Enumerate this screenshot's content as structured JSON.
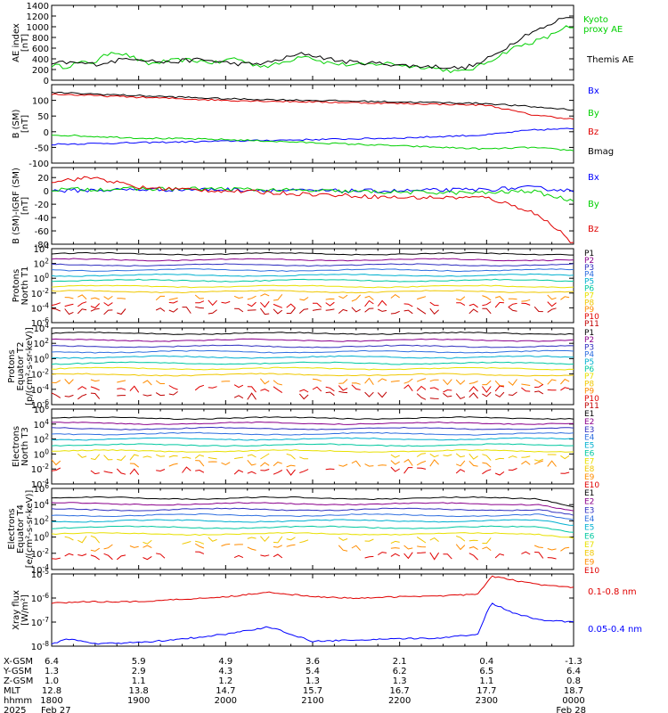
{
  "colors": {
    "black": "#000000",
    "red": "#e00000",
    "green": "#00d000",
    "blue": "#0000ff",
    "P1": "#000000",
    "P2": "#8b008b",
    "P3": "#3030c0",
    "P4": "#2f6fe0",
    "P5": "#00b0d0",
    "P6": "#00c8a0",
    "P7": "#e8e000",
    "P8": "#f0c800",
    "P9": "#ff8c00",
    "P10": "#e00000",
    "P11": "#c00000"
  },
  "chart_data": [
    {
      "type": "line",
      "ylabel": "AE index\n[nT]",
      "ylim": [
        0,
        1400
      ],
      "yticks": [
        "1400",
        "1200",
        "1000",
        "800",
        "600",
        "400",
        "200",
        "0"
      ],
      "ytick_values": [
        1400,
        1200,
        1000,
        800,
        600,
        400,
        200,
        0
      ],
      "series": [
        {
          "name": "Kyoto\nproxy AE",
          "color": "#00d000",
          "x": [
            0,
            0.15,
            0.3,
            0.5,
            0.7,
            0.9,
            1.1,
            1.3,
            1.5,
            1.7,
            1.9,
            2.1,
            2.3,
            2.5,
            2.7,
            2.9,
            3.1,
            3.3,
            3.5,
            3.7,
            3.9,
            4.1,
            4.3,
            4.5,
            4.7,
            4.9,
            5.1,
            5.3,
            5.5,
            5.7,
            5.9,
            6.0
          ],
          "y": [
            280,
            250,
            320,
            340,
            550,
            450,
            300,
            350,
            380,
            360,
            320,
            420,
            300,
            260,
            350,
            480,
            350,
            300,
            280,
            300,
            320,
            260,
            250,
            200,
            150,
            250,
            420,
            600,
            700,
            800,
            1000,
            950
          ]
        },
        {
          "name": "Themis AE",
          "color": "#000000",
          "x": [
            0,
            0.15,
            0.3,
            0.5,
            0.7,
            0.9,
            1.1,
            1.3,
            1.5,
            1.7,
            1.9,
            2.1,
            2.3,
            2.5,
            2.7,
            2.9,
            3.1,
            3.3,
            3.5,
            3.7,
            3.9,
            4.1,
            4.3,
            4.5,
            4.7,
            4.9,
            5.1,
            5.3,
            5.5,
            5.7,
            5.9,
            6.0
          ],
          "y": [
            300,
            330,
            320,
            300,
            350,
            420,
            380,
            330,
            360,
            390,
            350,
            310,
            300,
            330,
            420,
            500,
            430,
            360,
            330,
            320,
            300,
            270,
            260,
            250,
            220,
            300,
            480,
            700,
            900,
            1000,
            1200,
            1150
          ]
        }
      ]
    },
    {
      "type": "line",
      "ylabel": "B (SM)\n[nT]",
      "ylim": [
        -100,
        150
      ],
      "yticks": [
        "100",
        "50",
        "0",
        "-50",
        "-100"
      ],
      "ytick_values": [
        100,
        50,
        0,
        -50,
        -100
      ],
      "series": [
        {
          "name": "Bx",
          "color": "#0000ff",
          "x": [
            0,
            1,
            2,
            3,
            4,
            5,
            5.5,
            6
          ],
          "y": [
            -40,
            -35,
            -30,
            -25,
            -20,
            -10,
            5,
            10
          ]
        },
        {
          "name": "By",
          "color": "#00d000",
          "x": [
            0,
            1,
            2,
            3,
            4,
            5,
            5.5,
            6
          ],
          "y": [
            -10,
            -20,
            -25,
            -35,
            -45,
            -55,
            -50,
            -60
          ]
        },
        {
          "name": "Bz",
          "color": "#e00000",
          "x": [
            0,
            1,
            2,
            3,
            4,
            5,
            5.5,
            6
          ],
          "y": [
            120,
            110,
            100,
            95,
            90,
            85,
            55,
            40
          ]
        },
        {
          "name": "Bmag",
          "color": "#000000",
          "x": [
            0,
            1,
            2,
            3,
            4,
            5,
            5.5,
            6
          ],
          "y": [
            125,
            115,
            105,
            100,
            95,
            90,
            80,
            70
          ]
        }
      ]
    },
    {
      "type": "line",
      "ylabel": "B (SM)-IGRF (SM)\n[nT]",
      "ylim": [
        -80,
        35
      ],
      "yticks": [
        "20",
        "0",
        "-20",
        "-40",
        "-60",
        "-80"
      ],
      "ytick_values": [
        20,
        0,
        -20,
        -40,
        -60,
        -80
      ],
      "series": [
        {
          "name": "Bx",
          "color": "#0000ff",
          "x": [
            0,
            1,
            2,
            3,
            4,
            5,
            5.5,
            6
          ],
          "y": [
            0,
            2,
            2,
            0,
            0,
            2,
            5,
            0
          ]
        },
        {
          "name": "By",
          "color": "#00d000",
          "x": [
            0,
            1,
            2,
            3,
            4,
            5,
            5.5,
            6
          ],
          "y": [
            2,
            3,
            3,
            0,
            -2,
            -3,
            0,
            -15
          ]
        },
        {
          "name": "Bz",
          "color": "#e00000",
          "x": [
            0,
            0.5,
            1,
            2,
            3,
            4,
            5,
            5.5,
            5.8,
            6
          ],
          "y": [
            15,
            20,
            5,
            0,
            -5,
            -10,
            -10,
            -30,
            -55,
            -80
          ]
        }
      ]
    },
    {
      "type": "line",
      "ylabel": "Protons\nNorth T1",
      "ylog": true,
      "ylim": [
        -6,
        4
      ],
      "yticks": [
        "10^4",
        "10^2",
        "10^0",
        "10^-2",
        "10^-4",
        "10^-6"
      ],
      "ytick_values": [
        4,
        2,
        0,
        -2,
        -4,
        -6
      ],
      "series_names": [
        "P1",
        "P2",
        "P3",
        "P4",
        "P5",
        "P6",
        "P7",
        "P8",
        "P9",
        "P10",
        "P11"
      ],
      "series_logs": [
        3.3,
        2.5,
        1.8,
        1.1,
        0.4,
        -0.3,
        -1.1,
        -1.8,
        -2.6,
        -3.5,
        -4.4
      ]
    },
    {
      "type": "line",
      "ylabel": "Protons\nEquator T2\n[p/(cm^2-s-sr-keV)]",
      "ylog": true,
      "ylim": [
        -6,
        4
      ],
      "yticks": [
        "10^4",
        "10^2",
        "10^0",
        "10^-2",
        "10^-4",
        "10^-6"
      ],
      "ytick_values": [
        4,
        2,
        0,
        -2,
        -4,
        -6
      ],
      "series_names": [
        "P1",
        "P2",
        "P3",
        "P4",
        "P5",
        "P6",
        "P7",
        "P8",
        "P9",
        "P10",
        "P11"
      ],
      "series_logs": [
        3.3,
        2.4,
        1.6,
        0.9,
        0.2,
        -0.6,
        -1.3,
        -2.1,
        -3.0,
        -3.9,
        -4.8
      ]
    },
    {
      "type": "line",
      "ylabel": "Electrons\nNorth T3",
      "ylog": true,
      "ylim": [
        -4,
        6
      ],
      "yticks": [
        "10^6",
        "10^4",
        "10^2",
        "10^0",
        "10^-2",
        "10^-4"
      ],
      "ytick_values": [
        6,
        4,
        2,
        0,
        -2,
        -4
      ],
      "series_names": [
        "E1",
        "E2",
        "E3",
        "E4",
        "E5",
        "E6",
        "E7",
        "E8",
        "E9",
        "E10"
      ],
      "series_logs": [
        4.8,
        4.1,
        3.4,
        2.7,
        2.0,
        1.2,
        0.4,
        -0.4,
        -1.3,
        -2.3
      ]
    },
    {
      "type": "line",
      "ylabel": "Electrons\nEquator T4\n[e/(cm^2-s-sr-keV)]",
      "ylog": true,
      "ylim": [
        -4,
        6
      ],
      "yticks": [
        "10^6",
        "10^4",
        "10^2",
        "10^0",
        "10^-2",
        "10^-4"
      ],
      "ytick_values": [
        6,
        4,
        2,
        0,
        -2,
        -4
      ],
      "series_names": [
        "E1",
        "E2",
        "E3",
        "E4",
        "E5",
        "E6",
        "E7",
        "E8",
        "E9",
        "E10"
      ],
      "series_logs": [
        4.8,
        4.1,
        3.4,
        2.7,
        2.0,
        1.2,
        0.4,
        -0.4,
        -1.3,
        -2.3
      ]
    },
    {
      "type": "line",
      "ylabel": "Xray flux\n[W/m^2]",
      "ylog": true,
      "ylim": [
        -8,
        -5
      ],
      "yticks": [
        "10^-5",
        "10^-6",
        "10^-7",
        "10^-8"
      ],
      "ytick_values": [
        -5,
        -6,
        -7,
        -8
      ],
      "series": [
        {
          "name": "0.1-0.8 nm",
          "color": "#e00000",
          "x": [
            0,
            0.5,
            1,
            1.5,
            2,
            2.5,
            3,
            3.5,
            4,
            4.5,
            4.9,
            5.05,
            5.3,
            5.6,
            6.0
          ],
          "y": [
            -6.2,
            -6.15,
            -6.15,
            -6.05,
            -5.95,
            -5.75,
            -5.95,
            -6.0,
            -5.95,
            -5.9,
            -5.85,
            -5.1,
            -5.25,
            -5.45,
            -5.55
          ]
        },
        {
          "name": "0.05-0.4 nm",
          "color": "#0000ff",
          "x": [
            0,
            0.2,
            0.5,
            1,
            1.5,
            2,
            2.5,
            3,
            3.5,
            4,
            4.5,
            4.9,
            5.05,
            5.3,
            5.6,
            6.0
          ],
          "y": [
            -7.9,
            -7.7,
            -7.9,
            -7.85,
            -7.7,
            -7.5,
            -7.2,
            -7.8,
            -7.75,
            -7.7,
            -7.65,
            -7.5,
            -6.2,
            -6.6,
            -6.9,
            -7.0
          ]
        }
      ]
    }
  ],
  "xaxis": {
    "row_labels": [
      "X-GSM",
      "Y-GSM",
      "Z-GSM",
      "MLT",
      "hhmm",
      "2025"
    ],
    "columns": [
      [
        "6.4",
        "1.3",
        "1.0",
        "12.8",
        "1800",
        "Feb 27"
      ],
      [
        "5.9",
        "2.9",
        "1.1",
        "13.8",
        "1900",
        ""
      ],
      [
        "4.9",
        "4.3",
        "1.2",
        "14.7",
        "2000",
        ""
      ],
      [
        "3.6",
        "5.4",
        "1.3",
        "15.7",
        "2100",
        ""
      ],
      [
        "2.1",
        "6.2",
        "1.3",
        "16.7",
        "2200",
        ""
      ],
      [
        "0.4",
        "6.5",
        "1.1",
        "17.7",
        "2300",
        ""
      ],
      [
        "-1.3",
        "6.4",
        "0.8",
        "18.7",
        "0000",
        "Feb 28"
      ]
    ]
  }
}
